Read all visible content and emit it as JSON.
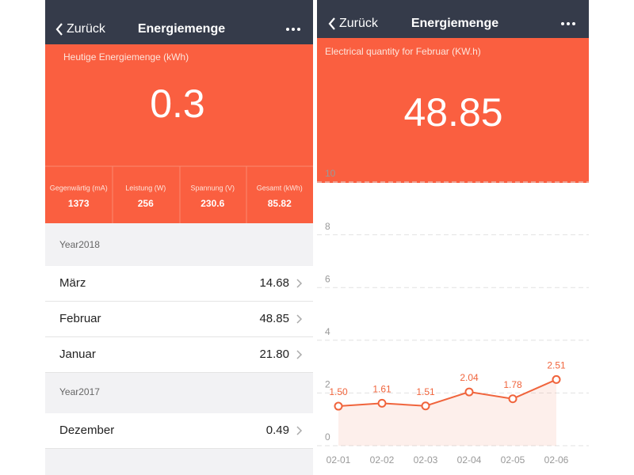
{
  "left_screen": {
    "header": {
      "back": "Zurück",
      "title": "Energiemenge"
    },
    "today": {
      "label": "Heutige Energiemenge (kWh)",
      "value": "0.3"
    },
    "stats": [
      {
        "label": "Gegenwärtig (mA)",
        "value": "1373"
      },
      {
        "label": "Leistung (W)",
        "value": "256"
      },
      {
        "label": "Spannung (V)",
        "value": "230.6"
      },
      {
        "label": "Gesamt (kWh)",
        "value": "85.82"
      }
    ],
    "sections": [
      {
        "title": "Year2018",
        "rows": [
          {
            "month": "März",
            "value": "14.68"
          },
          {
            "month": "Februar",
            "value": "48.85"
          },
          {
            "month": "Januar",
            "value": "21.80"
          }
        ]
      },
      {
        "title": "Year2017",
        "rows": [
          {
            "month": "Dezember",
            "value": "0.49"
          }
        ]
      }
    ]
  },
  "right_screen": {
    "header": {
      "back": "Zurück",
      "title": "Energiemenge"
    },
    "summary": {
      "label": "Electrical quantity for Februar (KW.h)",
      "value": "48.85"
    }
  },
  "chart_data": {
    "type": "line",
    "categories": [
      "02-01",
      "02-02",
      "02-03",
      "02-04",
      "02-05",
      "02-06"
    ],
    "values": [
      1.5,
      1.61,
      1.51,
      2.04,
      1.78,
      2.51
    ],
    "value_labels": [
      "1.50",
      "1.61",
      "1.51",
      "2.04",
      "1.78",
      "2.51"
    ],
    "color": "#f0643c",
    "ylim": [
      0,
      10
    ],
    "yticks": [
      0,
      2,
      4,
      6,
      8,
      10
    ],
    "grid": true
  }
}
